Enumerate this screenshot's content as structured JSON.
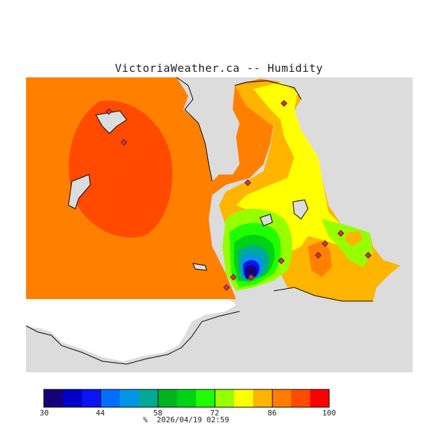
{
  "header": {
    "title": "VictoriaWeather.ca -- Humidity"
  },
  "legend": {
    "ticks": [
      "30",
      "44",
      "58",
      "72",
      "86",
      "100"
    ],
    "colors": [
      "#16007a",
      "#0000c8",
      "#0a14f5",
      "#006eff",
      "#0096e6",
      "#00aa96",
      "#00b41e",
      "#00d214",
      "#1efe00",
      "#96ff00",
      "#ffff00",
      "#ffb400",
      "#ff7d00",
      "#ff4b00",
      "#ff0000"
    ],
    "unit": "%",
    "timestamp": "2026/04/19 02:59"
  },
  "map": {
    "colors": {
      "land_outside": "#dcdcdc",
      "water": "#ffffff",
      "orange": "#ff8000",
      "red_orange": "#ff4a00",
      "amber": "#ffb400",
      "yellow": "#ffff00",
      "lime": "#96ff00",
      "green": "#20ff00",
      "green2": "#00d214",
      "teal": "#00aa96",
      "cyan": "#0096e6",
      "blue": "#0a14f5",
      "navy": "#16007a",
      "station": "#cc3355"
    },
    "stations_count": 12
  }
}
